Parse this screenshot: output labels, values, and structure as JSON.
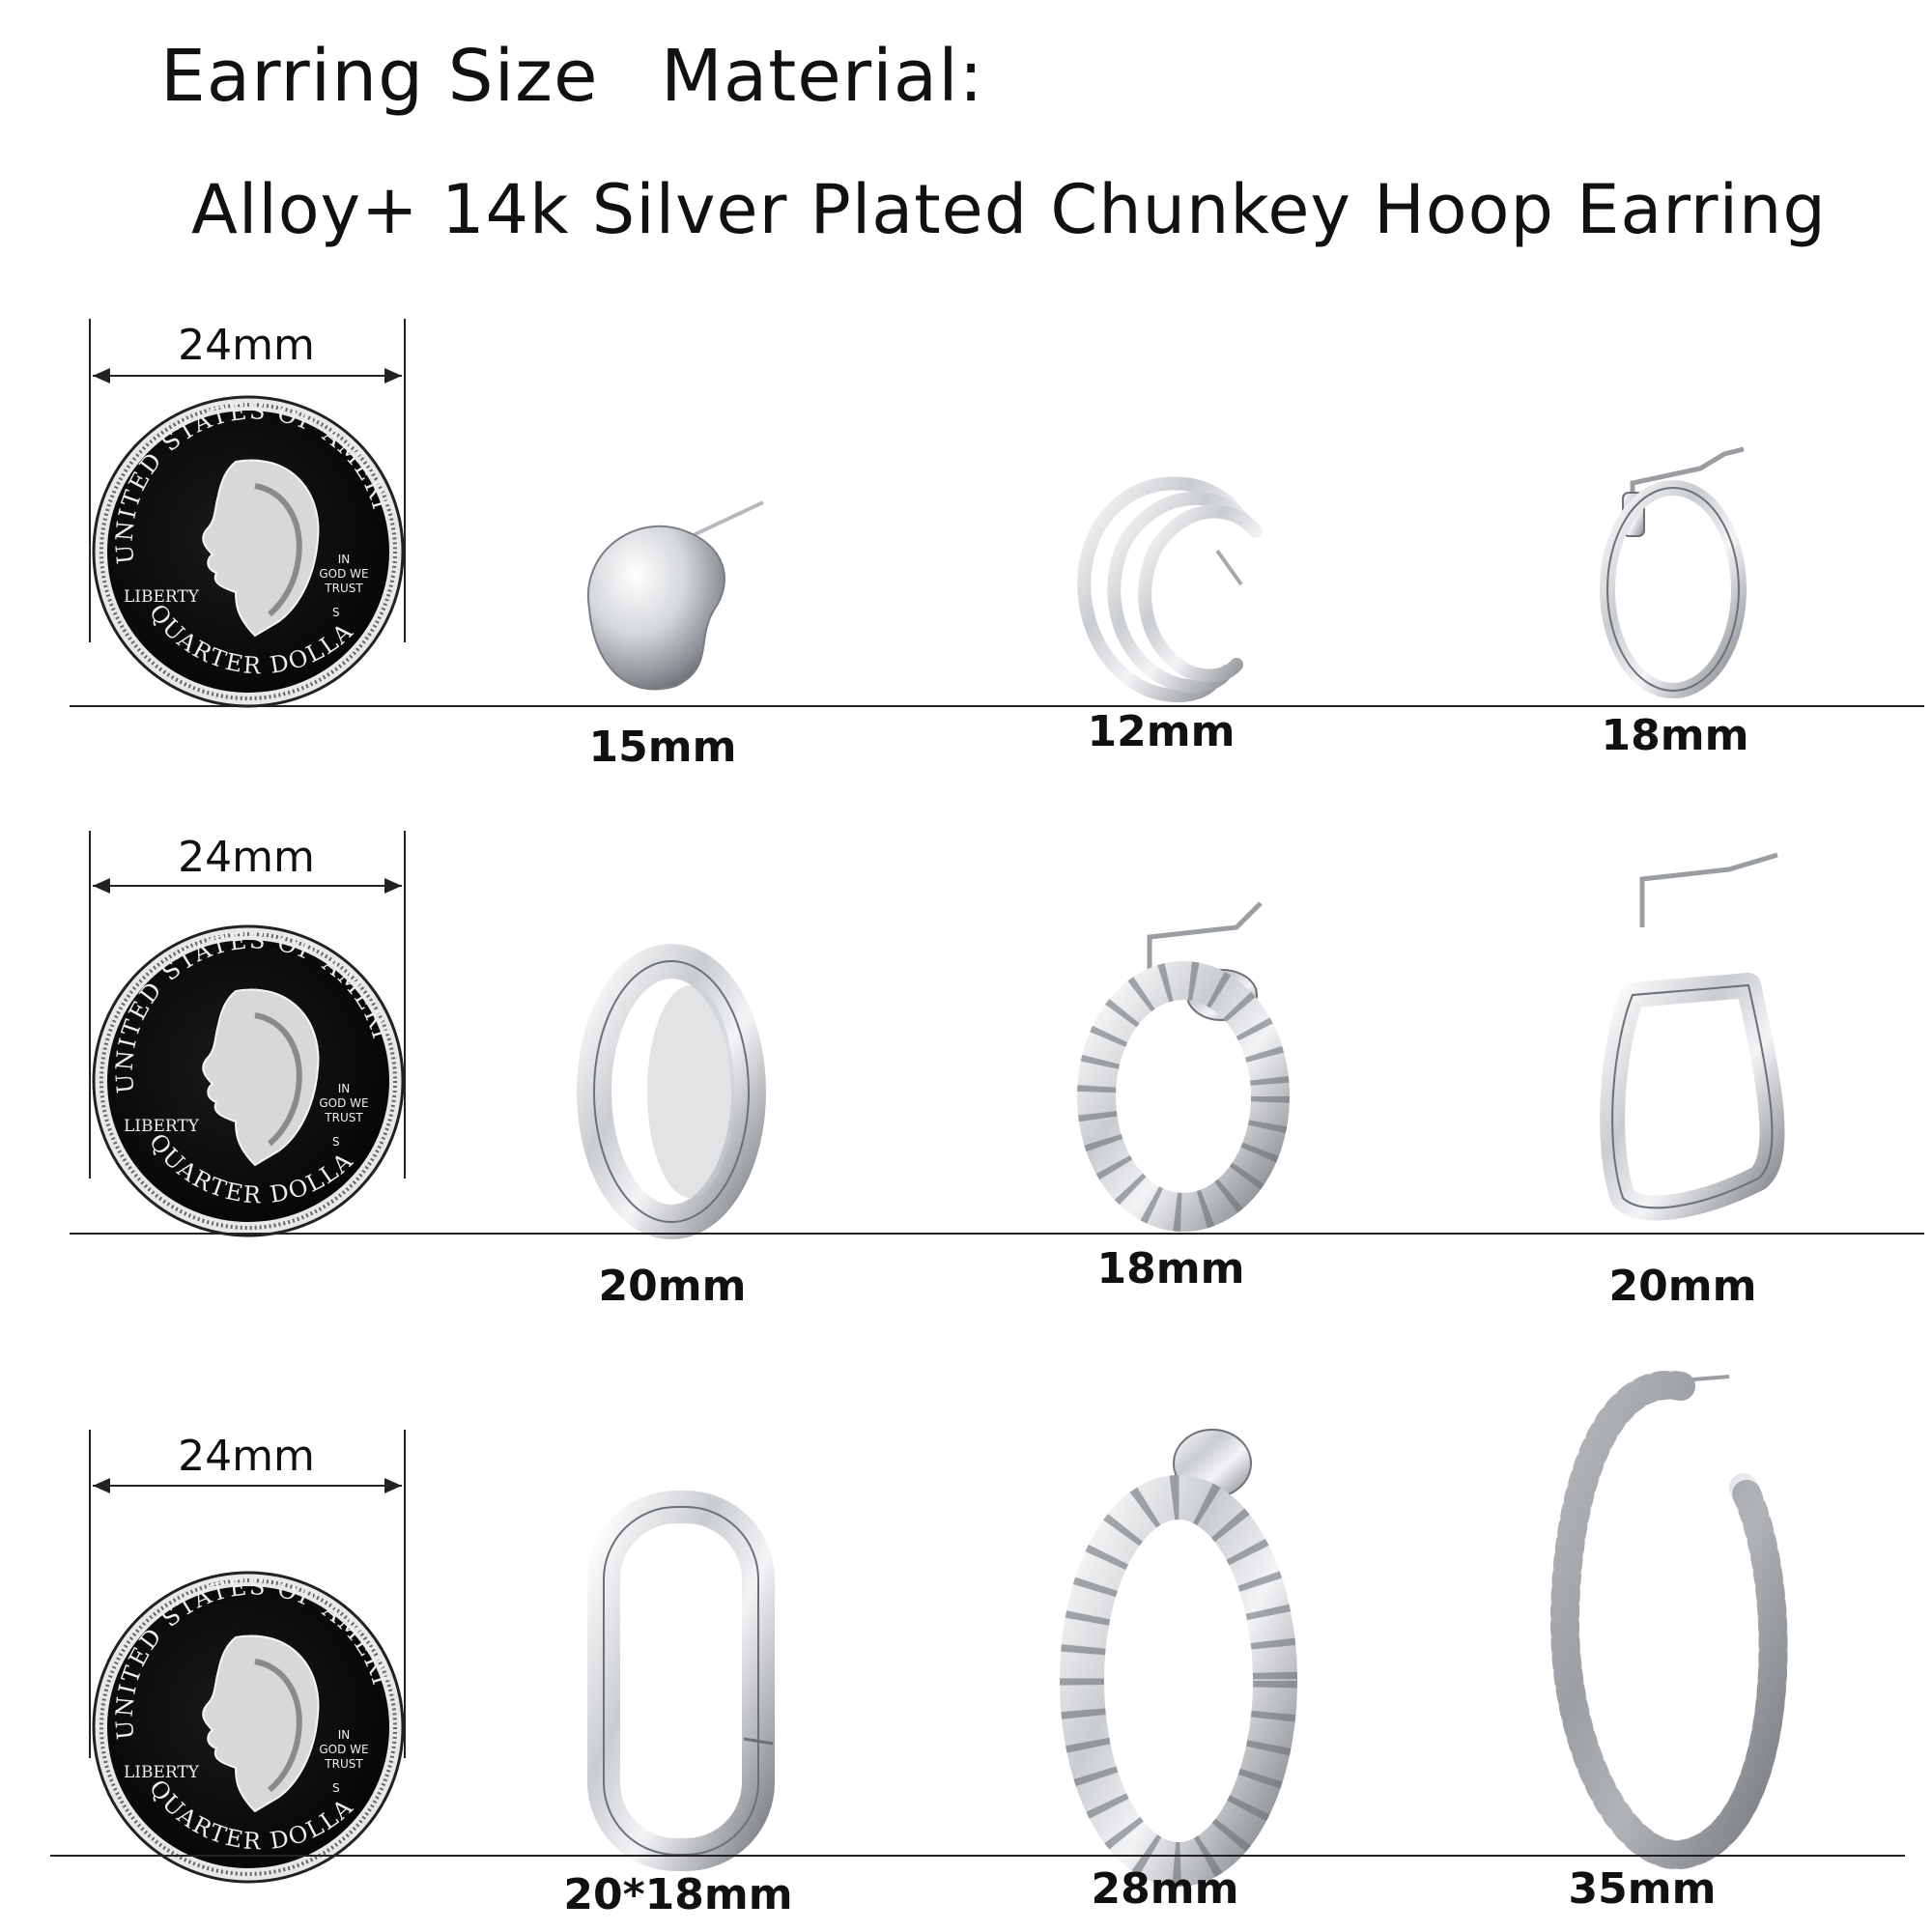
{
  "heading": {
    "line1_left": "Earring Size",
    "line1_right": "Material:",
    "line2": "Alloy+ 14k Silver Plated  Chunkey Hoop  Earring"
  },
  "coin": {
    "top_text": "UNITED STATES OF AMERICA",
    "bottom_text": "QUARTER DOLLAR",
    "liberty": "LIBERTY",
    "motto_1": "IN",
    "motto_2": "GOD WE",
    "motto_3": "TRUST",
    "mint": "S"
  },
  "rows": [
    {
      "ruler_label": "24mm",
      "items": [
        {
          "style": "chunky-dome",
          "size": "15mm"
        },
        {
          "style": "triple-c-hoop",
          "size": "12mm"
        },
        {
          "style": "thin-hoop",
          "size": "18mm"
        }
      ]
    },
    {
      "ruler_label": "24mm",
      "items": [
        {
          "style": "huggie-hoop",
          "size": "20mm"
        },
        {
          "style": "twisted-hoop",
          "size": "18mm"
        },
        {
          "style": "triangle-hoop",
          "size": "20mm"
        }
      ]
    },
    {
      "ruler_label": "24mm",
      "items": [
        {
          "style": "rectangle-hoop",
          "size": "20*18mm"
        },
        {
          "style": "twisted-chunky-hoop",
          "size": "28mm"
        },
        {
          "style": "rope-open-hoop",
          "size": "35mm"
        }
      ]
    }
  ]
}
